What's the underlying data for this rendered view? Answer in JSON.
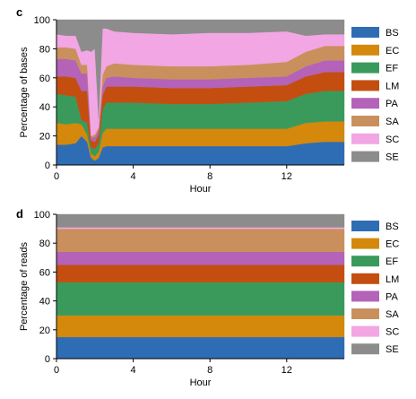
{
  "chart_data": [
    {
      "panel_label": "c",
      "type": "area",
      "stacked": true,
      "xlabel": "Hour",
      "ylabel": "Percentage of bases",
      "xlim": [
        0,
        15
      ],
      "ylim": [
        0,
        100
      ],
      "xticks": [
        0,
        4,
        8,
        12
      ],
      "yticks": [
        0,
        20,
        40,
        60,
        80,
        100
      ],
      "legend_position": "right",
      "x": [
        0,
        0.5,
        1.0,
        1.3,
        1.6,
        1.8,
        2.0,
        2.2,
        2.4,
        2.6,
        3.0,
        4.0,
        6.0,
        8.0,
        10.0,
        12.0,
        13.0,
        14.0,
        15.0
      ],
      "series": [
        {
          "name": "BS",
          "color": "#2e6db4",
          "values": [
            14,
            14,
            15,
            20,
            16,
            5,
            3,
            5,
            12,
            13,
            13,
            13,
            13,
            13,
            13,
            13,
            15,
            16,
            16
          ]
        },
        {
          "name": "EC",
          "color": "#d4880c",
          "values": [
            15,
            14,
            14,
            8,
            5,
            3,
            3,
            4,
            10,
            12,
            12,
            12,
            12,
            12,
            12,
            12,
            14,
            14,
            14
          ]
        },
        {
          "name": "EF",
          "color": "#3a9a5c",
          "values": [
            20,
            20,
            18,
            3,
            8,
            4,
            5,
            6,
            16,
            18,
            18,
            18,
            17,
            17,
            18,
            19,
            20,
            21,
            21
          ]
        },
        {
          "name": "LM",
          "color": "#c44e10",
          "values": [
            12,
            13,
            13,
            20,
            22,
            5,
            5,
            6,
            10,
            11,
            11,
            11,
            11,
            11,
            11,
            11,
            12,
            13,
            13
          ]
        },
        {
          "name": "PA",
          "color": "#b463b8",
          "values": [
            12,
            12,
            12,
            12,
            12,
            2,
            3,
            3,
            6,
            6,
            7,
            6,
            6,
            6,
            6,
            6,
            7,
            8,
            8
          ]
        },
        {
          "name": "SA",
          "color": "#c9905d",
          "values": [
            8,
            8,
            8,
            6,
            6,
            1,
            2,
            2,
            8,
            8,
            9,
            9,
            9,
            9,
            9,
            10,
            10,
            10,
            10
          ]
        },
        {
          "name": "SC",
          "color": "#f2a6e3",
          "values": [
            9,
            8,
            9,
            9,
            10,
            58,
            59,
            6,
            32,
            26,
            22,
            22,
            22,
            23,
            22,
            21,
            11,
            8,
            8
          ]
        },
        {
          "name": "SE",
          "color": "#8c8c8c",
          "values": [
            10,
            11,
            11,
            22,
            21,
            22,
            20,
            68,
            6,
            6,
            8,
            9,
            10,
            9,
            9,
            8,
            11,
            10,
            10
          ]
        }
      ]
    },
    {
      "panel_label": "d",
      "type": "area",
      "stacked": true,
      "xlabel": "Hour",
      "ylabel": "Percentage of reads",
      "xlim": [
        0,
        15
      ],
      "ylim": [
        0,
        100
      ],
      "xticks": [
        0,
        4,
        8,
        12
      ],
      "yticks": [
        0,
        20,
        40,
        60,
        80,
        100
      ],
      "legend_position": "right",
      "x": [
        0,
        15
      ],
      "series": [
        {
          "name": "BS",
          "color": "#2e6db4",
          "values": [
            15,
            15
          ]
        },
        {
          "name": "EC",
          "color": "#d4880c",
          "values": [
            15,
            15
          ]
        },
        {
          "name": "EF",
          "color": "#3a9a5c",
          "values": [
            23,
            23
          ]
        },
        {
          "name": "LM",
          "color": "#c44e10",
          "values": [
            12,
            12
          ]
        },
        {
          "name": "PA",
          "color": "#b463b8",
          "values": [
            9,
            9
          ]
        },
        {
          "name": "SA",
          "color": "#c9905d",
          "values": [
            16,
            16
          ]
        },
        {
          "name": "SC",
          "color": "#f2a6e3",
          "values": [
            1,
            1
          ]
        },
        {
          "name": "SE",
          "color": "#8c8c8c",
          "values": [
            9,
            9
          ]
        }
      ]
    }
  ]
}
